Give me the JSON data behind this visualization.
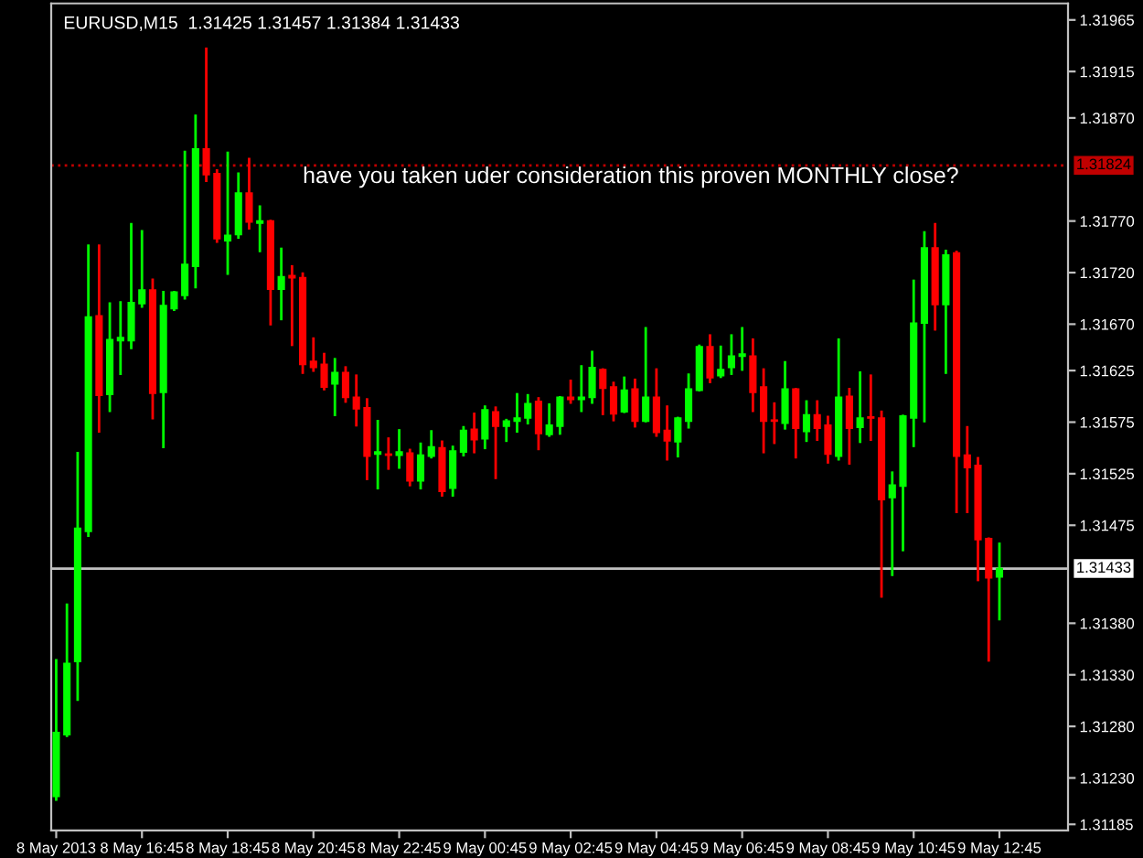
{
  "chart_data": {
    "type": "candlestick",
    "title": "EURUSD,M15  1.31425 1.31457 1.31384 1.31433",
    "annotations": [
      "have you taken uder consideration this proven MONTHLY close?"
    ],
    "x": [
      "2013-05-08T14:45",
      "2013-05-08T15:00",
      "2013-05-08T15:15",
      "2013-05-08T15:30",
      "2013-05-08T15:45",
      "2013-05-08T16:00",
      "2013-05-08T16:15",
      "2013-05-08T16:30",
      "2013-05-08T16:45",
      "2013-05-08T17:00",
      "2013-05-08T17:15",
      "2013-05-08T17:30",
      "2013-05-08T17:45",
      "2013-05-08T18:00",
      "2013-05-08T18:15",
      "2013-05-08T18:30",
      "2013-05-08T18:45",
      "2013-05-08T19:00",
      "2013-05-08T19:15",
      "2013-05-08T19:30",
      "2013-05-08T19:45",
      "2013-05-08T20:00",
      "2013-05-08T20:15",
      "2013-05-08T20:30",
      "2013-05-08T20:45",
      "2013-05-08T21:00",
      "2013-05-08T21:15",
      "2013-05-08T21:30",
      "2013-05-08T21:45",
      "2013-05-08T22:00",
      "2013-05-08T22:15",
      "2013-05-08T22:30",
      "2013-05-08T22:45",
      "2013-05-08T23:00",
      "2013-05-08T23:15",
      "2013-05-08T23:30",
      "2013-05-08T23:45",
      "2013-05-09T00:00",
      "2013-05-09T00:15",
      "2013-05-09T00:30",
      "2013-05-09T00:45",
      "2013-05-09T01:00",
      "2013-05-09T01:15",
      "2013-05-09T01:30",
      "2013-05-09T01:45",
      "2013-05-09T02:00",
      "2013-05-09T02:15",
      "2013-05-09T02:30",
      "2013-05-09T02:45",
      "2013-05-09T03:00",
      "2013-05-09T03:15",
      "2013-05-09T03:30",
      "2013-05-09T03:45",
      "2013-05-09T04:00",
      "2013-05-09T04:15",
      "2013-05-09T04:30",
      "2013-05-09T04:45",
      "2013-05-09T05:00",
      "2013-05-09T05:15",
      "2013-05-09T05:30",
      "2013-05-09T05:45",
      "2013-05-09T06:00",
      "2013-05-09T06:15",
      "2013-05-09T06:30",
      "2013-05-09T06:45",
      "2013-05-09T07:00",
      "2013-05-09T07:15",
      "2013-05-09T07:30",
      "2013-05-09T07:45",
      "2013-05-09T08:00",
      "2013-05-09T08:15",
      "2013-05-09T08:30",
      "2013-05-09T08:45",
      "2013-05-09T09:00",
      "2013-05-09T09:15",
      "2013-05-09T09:30",
      "2013-05-09T09:45",
      "2013-05-09T10:00",
      "2013-05-09T10:15",
      "2013-05-09T10:30",
      "2013-05-09T10:45",
      "2013-05-09T11:00",
      "2013-05-09T11:15",
      "2013-05-09T11:30",
      "2013-05-09T11:45",
      "2013-05-09T12:00",
      "2013-05-09T12:15",
      "2013-05-09T12:30",
      "2013-05-09T12:45"
    ],
    "ohlc": [
      [
        1.31212,
        1.31344,
        1.31209,
        1.31274
      ],
      [
        1.31272,
        1.31398,
        1.31271,
        1.31341
      ],
      [
        1.31343,
        1.31545,
        1.31306,
        1.31472
      ],
      [
        1.31469,
        1.31746,
        1.31465,
        1.31677
      ],
      [
        1.31678,
        1.31746,
        1.31566,
        1.31601
      ],
      [
        1.31602,
        1.3169,
        1.31586,
        1.31655
      ],
      [
        1.31654,
        1.31691,
        1.31622,
        1.31657
      ],
      [
        1.31654,
        1.31767,
        1.31647,
        1.31691
      ],
      [
        1.3169,
        1.3176,
        1.31687,
        1.31703
      ],
      [
        1.31703,
        1.31713,
        1.31579,
        1.31603
      ],
      [
        1.31604,
        1.31701,
        1.31551,
        1.31688
      ],
      [
        1.31685,
        1.31701,
        1.31684,
        1.31701
      ],
      [
        1.31698,
        1.31837,
        1.31695,
        1.31728
      ],
      [
        1.31726,
        1.31872,
        1.31706,
        1.3184
      ],
      [
        1.3184,
        1.31937,
        1.31809,
        1.31815
      ],
      [
        1.31816,
        1.31819,
        1.3175,
        1.31753
      ],
      [
        1.31751,
        1.31836,
        1.31719,
        1.31756
      ],
      [
        1.31757,
        1.31816,
        1.31754,
        1.31797
      ],
      [
        1.31797,
        1.3183,
        1.31763,
        1.31769
      ],
      [
        1.31768,
        1.31784,
        1.31741,
        1.3177
      ],
      [
        1.3177,
        1.3177,
        1.3167,
        1.31704
      ],
      [
        1.31704,
        1.31743,
        1.31675,
        1.31716
      ],
      [
        1.31717,
        1.31726,
        1.3165,
        1.31715
      ],
      [
        1.31715,
        1.31719,
        1.31623,
        1.31631
      ],
      [
        1.31634,
        1.31656,
        1.31625,
        1.31628
      ],
      [
        1.31631,
        1.31641,
        1.31607,
        1.31609
      ],
      [
        1.31612,
        1.31636,
        1.31582,
        1.31623
      ],
      [
        1.31623,
        1.31628,
        1.31595,
        1.31599
      ],
      [
        1.31599,
        1.3162,
        1.31572,
        1.31588
      ],
      [
        1.31589,
        1.31597,
        1.3152,
        1.31542
      ],
      [
        1.31544,
        1.31576,
        1.31511,
        1.31546
      ],
      [
        1.31544,
        1.31559,
        1.3153,
        1.31543
      ],
      [
        1.31543,
        1.31567,
        1.31531,
        1.31546
      ],
      [
        1.31545,
        1.31548,
        1.31514,
        1.31518
      ],
      [
        1.31518,
        1.31554,
        1.31511,
        1.31543
      ],
      [
        1.31542,
        1.31566,
        1.31541,
        1.31551
      ],
      [
        1.3155,
        1.31556,
        1.31504,
        1.31508
      ],
      [
        1.31511,
        1.31551,
        1.31504,
        1.31547
      ],
      [
        1.31546,
        1.3157,
        1.31543,
        1.31567
      ],
      [
        1.31568,
        1.31583,
        1.31546,
        1.31558
      ],
      [
        1.31559,
        1.3159,
        1.3155,
        1.31587
      ],
      [
        1.31585,
        1.31589,
        1.31521,
        1.31571
      ],
      [
        1.31571,
        1.31577,
        1.31557,
        1.31576
      ],
      [
        1.31576,
        1.31602,
        1.31566,
        1.31579
      ],
      [
        1.31579,
        1.31601,
        1.31574,
        1.31593
      ],
      [
        1.31595,
        1.31598,
        1.31549,
        1.31564
      ],
      [
        1.31563,
        1.31592,
        1.31562,
        1.31572
      ],
      [
        1.31571,
        1.31599,
        1.31564,
        1.31599
      ],
      [
        1.31599,
        1.31615,
        1.31594,
        1.31597
      ],
      [
        1.31597,
        1.31629,
        1.31586,
        1.31599
      ],
      [
        1.31599,
        1.31643,
        1.31594,
        1.31628
      ],
      [
        1.31626,
        1.31626,
        1.31583,
        1.31608
      ],
      [
        1.31609,
        1.31613,
        1.31577,
        1.31583
      ],
      [
        1.31585,
        1.31618,
        1.31585,
        1.31606
      ],
      [
        1.31607,
        1.31616,
        1.31571,
        1.31576
      ],
      [
        1.31576,
        1.31666,
        1.31576,
        1.31599
      ],
      [
        1.31599,
        1.31626,
        1.31562,
        1.31565
      ],
      [
        1.31567,
        1.3159,
        1.31539,
        1.31557
      ],
      [
        1.31556,
        1.31579,
        1.31542,
        1.31579
      ],
      [
        1.31576,
        1.31621,
        1.3157,
        1.31607
      ],
      [
        1.31606,
        1.31649,
        1.31606,
        1.31648
      ],
      [
        1.31648,
        1.31659,
        1.31614,
        1.31618
      ],
      [
        1.3162,
        1.31648,
        1.31619,
        1.31626
      ],
      [
        1.31628,
        1.31659,
        1.31622,
        1.31639
      ],
      [
        1.31639,
        1.31666,
        1.31626,
        1.31641
      ],
      [
        1.31639,
        1.31655,
        1.31586,
        1.31604
      ],
      [
        1.31609,
        1.31626,
        1.31546,
        1.31576
      ],
      [
        1.31577,
        1.31593,
        1.31555,
        1.31576
      ],
      [
        1.31574,
        1.31633,
        1.31569,
        1.31607
      ],
      [
        1.31607,
        1.31607,
        1.31541,
        1.31569
      ],
      [
        1.31566,
        1.31595,
        1.31557,
        1.31582
      ],
      [
        1.31582,
        1.31595,
        1.31558,
        1.31569
      ],
      [
        1.31572,
        1.3158,
        1.31536,
        1.31544
      ],
      [
        1.31542,
        1.31655,
        1.31539,
        1.31599
      ],
      [
        1.316,
        1.31607,
        1.31535,
        1.31569
      ],
      [
        1.3157,
        1.31623,
        1.31556,
        1.31579
      ],
      [
        1.3158,
        1.3162,
        1.31558,
        1.31579
      ],
      [
        1.31579,
        1.31585,
        1.31406,
        1.315
      ],
      [
        1.31502,
        1.31526,
        1.31427,
        1.31514
      ],
      [
        1.31513,
        1.31581,
        1.31451,
        1.31581
      ],
      [
        1.31579,
        1.31712,
        1.31552,
        1.31671
      ],
      [
        1.31671,
        1.31759,
        1.31576,
        1.31744
      ],
      [
        1.31744,
        1.31767,
        1.31665,
        1.31689
      ],
      [
        1.31689,
        1.31741,
        1.31623,
        1.31737
      ],
      [
        1.31739,
        1.3174,
        1.31488,
        1.31542
      ],
      [
        1.31543,
        1.3157,
        1.31488,
        1.31531
      ],
      [
        1.31533,
        1.3154,
        1.31422,
        1.31461
      ],
      [
        1.31462,
        1.31462,
        1.31344,
        1.31424
      ],
      [
        1.31425,
        1.31457,
        1.31384,
        1.31433
      ]
    ],
    "colors": [
      "#00ff00",
      "#00ff00",
      "#00ff00",
      "#00ff00",
      "#ff0000",
      "#00ff00",
      "#00ff00",
      "#00ff00",
      "#00ff00",
      "#ff0000",
      "#00ff00",
      "#00ff00",
      "#00ff00",
      "#00ff00",
      "#ff0000",
      "#ff0000",
      "#00ff00",
      "#00ff00",
      "#ff0000",
      "#00ff00",
      "#ff0000",
      "#00ff00",
      "#ff0000",
      "#ff0000",
      "#ff0000",
      "#ff0000",
      "#00ff00",
      "#ff0000",
      "#ff0000",
      "#ff0000",
      "#00ff00",
      "#ff0000",
      "#00ff00",
      "#ff0000",
      "#00ff00",
      "#00ff00",
      "#ff0000",
      "#00ff00",
      "#00ff00",
      "#ff0000",
      "#00ff00",
      "#ff0000",
      "#00ff00",
      "#00ff00",
      "#00ff00",
      "#ff0000",
      "#00ff00",
      "#00ff00",
      "#ff0000",
      "#00ff00",
      "#00ff00",
      "#ff0000",
      "#ff0000",
      "#00ff00",
      "#ff0000",
      "#00ff00",
      "#ff0000",
      "#ff0000",
      "#00ff00",
      "#00ff00",
      "#00ff00",
      "#ff0000",
      "#00ff00",
      "#00ff00",
      "#00ff00",
      "#ff0000",
      "#ff0000",
      "#ff0000",
      "#00ff00",
      "#ff0000",
      "#00ff00",
      "#ff0000",
      "#ff0000",
      "#00ff00",
      "#ff0000",
      "#00ff00",
      "#ff0000",
      "#ff0000",
      "#00ff00",
      "#00ff00",
      "#00ff00",
      "#00ff00",
      "#ff0000",
      "#00ff00",
      "#ff0000",
      "#ff0000",
      "#ff0000",
      "#ff0000",
      "#00ff00"
    ],
    "xlim": [
      "2013-05-08T14:38",
      "2013-05-09T14:21"
    ],
    "xticks": [
      {
        "value": "2013-05-08T14:45",
        "label": "8 May 2013"
      },
      {
        "value": "2013-05-08T16:45",
        "label": "8 May 16:45"
      },
      {
        "value": "2013-05-08T18:45",
        "label": "8 May 18:45"
      },
      {
        "value": "2013-05-08T20:45",
        "label": "8 May 20:45"
      },
      {
        "value": "2013-05-08T22:45",
        "label": "8 May 22:45"
      },
      {
        "value": "2013-05-09T00:45",
        "label": "9 May 00:45"
      },
      {
        "value": "2013-05-09T02:45",
        "label": "9 May 02:45"
      },
      {
        "value": "2013-05-09T04:45",
        "label": "9 May 04:45"
      },
      {
        "value": "2013-05-09T06:45",
        "label": "9 May 06:45"
      },
      {
        "value": "2013-05-09T08:45",
        "label": "9 May 08:45"
      },
      {
        "value": "2013-05-09T10:45",
        "label": "9 May 10:45"
      },
      {
        "value": "2013-05-09T12:45",
        "label": "9 May 12:45"
      }
    ],
    "ylim": [
      1.31179,
      1.31981
    ],
    "yticks": [
      1.31965,
      1.31915,
      {
        "value": 1.3187,
        "label": "1.31870"
      },
      {
        "value": 1.3177,
        "label": "1.31770"
      },
      {
        "value": 1.3172,
        "label": "1.31720"
      },
      {
        "value": 1.3167,
        "label": "1.31670"
      },
      1.31625,
      1.31575,
      1.31525,
      1.31475,
      {
        "value": 1.3138,
        "label": "1.31380"
      },
      {
        "value": 1.3133,
        "label": "1.31330"
      },
      {
        "value": 1.3128,
        "label": "1.31280"
      },
      {
        "value": 1.3123,
        "label": "1.31230"
      },
      1.31185
    ],
    "ref_lines": [
      {
        "axis": "y",
        "value": 1.31824,
        "label": "1.31824",
        "color": "#c00000",
        "line_style": "dotted"
      },
      {
        "axis": "y",
        "value": 1.31433,
        "label": "1.31433",
        "color": "#c0c0c0",
        "line_style": "solid"
      }
    ]
  }
}
